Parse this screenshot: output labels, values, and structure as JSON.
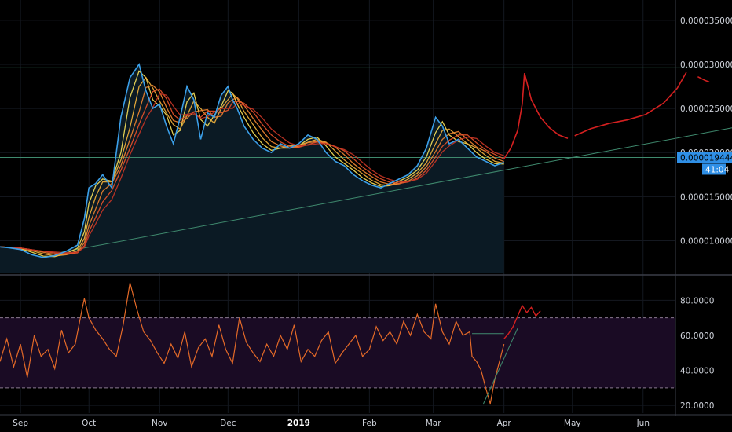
{
  "chart_data": [
    {
      "type": "line",
      "panel": "price",
      "title": "",
      "y_ticks": [
        "0.000010000",
        "0.000015000",
        "0.000020000",
        "0.000025000",
        "0.000030000",
        "0.000035000"
      ],
      "y_tick_values": [
        1e-05,
        1.5e-05,
        2e-05,
        2.5e-05,
        3e-05,
        3.5e-05
      ],
      "ylim": [
        6.3e-06,
        3.73e-05
      ],
      "x_ticks": [
        "Sep",
        "Oct",
        "Nov",
        "Dec",
        "2019",
        "Feb",
        "Mar",
        "Apr",
        "May",
        "Jun"
      ],
      "x_tick_days": [
        0,
        30,
        61,
        91,
        122,
        153,
        181,
        212,
        242,
        273
      ],
      "x_bold_tick": "2019",
      "xlim_days": [
        -9,
        312
      ],
      "last_price": "0.000019444",
      "last_price_value": 1.9444e-05,
      "countdown": "41:04",
      "colors": {
        "price": "#3b9fe8",
        "ribbon_warm": "#e8532b",
        "ribbon_yellow": "#f7e25a",
        "projection": "#d42020",
        "trendline": "#3f8a6e"
      },
      "series": [
        {
          "x_days": [
            -9,
            -5,
            0,
            5,
            10,
            15,
            20,
            25,
            28,
            30,
            33,
            36,
            40,
            44,
            48,
            52,
            55,
            58,
            61,
            64,
            67,
            70,
            73,
            76,
            79,
            82,
            85,
            88,
            91,
            93,
            95,
            98,
            102,
            106,
            110,
            114,
            118,
            122,
            126,
            130,
            134,
            138,
            142,
            146,
            150,
            154,
            158,
            162,
            166,
            170,
            174,
            178,
            182,
            185,
            188,
            192,
            196,
            200,
            204,
            208,
            212
          ],
          "y": [
            9.3e-06,
            9.2e-06,
            9e-06,
            8.4e-06,
            8.1e-06,
            8.3e-06,
            8.8e-06,
            9.5e-06,
            1.25e-05,
            1.6e-05,
            1.65e-05,
            1.75e-05,
            1.6e-05,
            2.4e-05,
            2.85e-05,
            3e-05,
            2.7e-05,
            2.5e-05,
            2.55e-05,
            2.3e-05,
            2.1e-05,
            2.4e-05,
            2.75e-05,
            2.6e-05,
            2.15e-05,
            2.45e-05,
            2.4e-05,
            2.65e-05,
            2.75e-05,
            2.6e-05,
            2.5e-05,
            2.3e-05,
            2.15e-05,
            2.05e-05,
            2e-05,
            2.1e-05,
            2.05e-05,
            2.1e-05,
            2.2e-05,
            2.15e-05,
            2e-05,
            1.9e-05,
            1.85e-05,
            1.75e-05,
            1.68e-05,
            1.63e-05,
            1.6e-05,
            1.65e-05,
            1.7e-05,
            1.75e-05,
            1.85e-05,
            2.05e-05,
            2.4e-05,
            2.3e-05,
            2.1e-05,
            2.15e-05,
            2.05e-05,
            1.95e-05,
            1.9e-05,
            1.85e-05,
            1.89e-05
          ]
        },
        {
          "x_days": [
            212,
            215,
            218,
            220,
            221
          ],
          "y": [
            1.93e-05,
            2.05e-05,
            2.25e-05,
            2.55e-05,
            2.9e-05
          ]
        },
        {
          "x_days": [
            221,
            224,
            228,
            232,
            236,
            240
          ],
          "y": [
            2.9e-05,
            2.6e-05,
            2.4e-05,
            2.28e-05,
            2.2e-05,
            2.16e-05
          ]
        },
        {
          "x_days": [
            243,
            250,
            258,
            266,
            274,
            282,
            288,
            292
          ],
          "y": [
            2.19e-05,
            2.27e-05,
            2.33e-05,
            2.37e-05,
            2.43e-05,
            2.56e-05,
            2.73e-05,
            2.91e-05
          ]
        },
        {
          "x_days": [
            297,
            300,
            302
          ],
          "y": [
            2.86e-05,
            2.82e-05,
            2.8e-05
          ]
        },
        {
          "x_days": [
            18,
            312
          ],
          "y": [
            8.7e-06,
            2.28e-05
          ]
        },
        {
          "x_days": [
            -9,
            312
          ],
          "y": [
            2.96e-05,
            2.96e-05
          ]
        }
      ]
    },
    {
      "type": "line",
      "panel": "oscillator",
      "y_ticks": [
        "20.0000",
        "40.0000",
        "60.0000",
        "80.0000"
      ],
      "y_tick_values": [
        20,
        40,
        60,
        80
      ],
      "ylim": [
        15.6,
        93.6
      ],
      "band": [
        30,
        70
      ],
      "colors": {
        "line": "#e46a28",
        "band_fill": "#1a0b24",
        "band_line": "#8a7a90",
        "projection": "#d42020",
        "trendline": "#3f8a6e"
      },
      "series": [
        {
          "x_days": [
            -9,
            -6,
            -3,
            0,
            3,
            6,
            9,
            12,
            15,
            18,
            21,
            24,
            27,
            28,
            30,
            33,
            36,
            39,
            42,
            45,
            48,
            51,
            54,
            57,
            60,
            63,
            66,
            69,
            72,
            75,
            78,
            81,
            84,
            87,
            90,
            93,
            96,
            99,
            102,
            105,
            108,
            111,
            114,
            117,
            120,
            123,
            126,
            129,
            132,
            135,
            138,
            141,
            144,
            147,
            150,
            153,
            156,
            159,
            162,
            165,
            168,
            171,
            174,
            177,
            180,
            182,
            185,
            188,
            191,
            194,
            197,
            198,
            200,
            202,
            204,
            206,
            208,
            210,
            212
          ],
          "y": [
            45,
            58,
            42,
            55,
            36,
            60,
            48,
            52,
            41,
            63,
            50,
            55,
            75,
            81,
            70,
            63,
            58,
            52,
            48,
            66,
            90,
            75,
            62,
            57,
            50,
            44,
            55,
            47,
            62,
            42,
            53,
            58,
            48,
            66,
            52,
            44,
            70,
            56,
            50,
            45,
            55,
            48,
            60,
            52,
            66,
            45,
            52,
            48,
            57,
            62,
            44,
            50,
            55,
            60,
            48,
            52,
            65,
            57,
            62,
            55,
            68,
            60,
            72,
            62,
            58,
            78,
            62,
            55,
            68,
            60,
            62,
            48,
            45,
            40,
            30,
            21,
            35,
            45,
            55
          ]
        },
        {
          "x_days": [
            212,
            214,
            216,
            218,
            220,
            222,
            224,
            226,
            228
          ],
          "y": [
            58,
            61,
            65,
            71,
            77,
            73,
            76,
            71,
            74
          ]
        },
        {
          "x_days": [
            198,
            212
          ],
          "y": [
            61,
            61
          ]
        },
        {
          "x_days": [
            203,
            218
          ],
          "y": [
            21,
            64
          ]
        }
      ]
    }
  ]
}
